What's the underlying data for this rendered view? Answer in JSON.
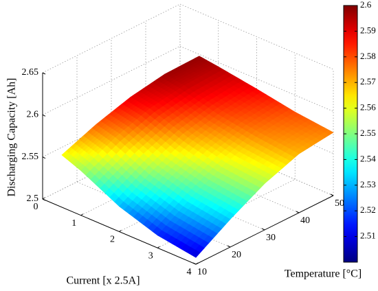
{
  "chart_data": {
    "type": "surface",
    "x_label": "Current [x 2.5A]",
    "y_label": "Temperature [°C]",
    "z_label": "Discharging Capacity [Ah]",
    "x": [
      0.5,
      1,
      2,
      3,
      4
    ],
    "y": [
      10,
      20,
      30,
      40,
      50
    ],
    "z": [
      [
        2.562,
        2.578,
        2.59,
        2.597,
        2.598
      ],
      [
        2.553,
        2.572,
        2.586,
        2.593,
        2.595
      ],
      [
        2.53,
        2.553,
        2.571,
        2.582,
        2.588
      ],
      [
        2.515,
        2.54,
        2.56,
        2.575,
        2.58
      ],
      [
        2.508,
        2.533,
        2.555,
        2.57,
        2.575
      ]
    ],
    "xlim": [
      0,
      4
    ],
    "ylim": [
      10,
      50
    ],
    "zlim": [
      2.5,
      2.65
    ],
    "xticks": [
      0,
      1,
      2,
      3,
      4
    ],
    "yticks": [
      10,
      20,
      30,
      40,
      50
    ],
    "zticks": [
      2.5,
      2.55,
      2.6,
      2.65
    ],
    "colormap": "jet",
    "grid": true,
    "colorbar": {
      "clim": [
        2.5,
        2.6
      ],
      "ticks": [
        2.51,
        2.52,
        2.53,
        2.54,
        2.55,
        2.56,
        2.57,
        2.58,
        2.59,
        2.6
      ]
    }
  }
}
